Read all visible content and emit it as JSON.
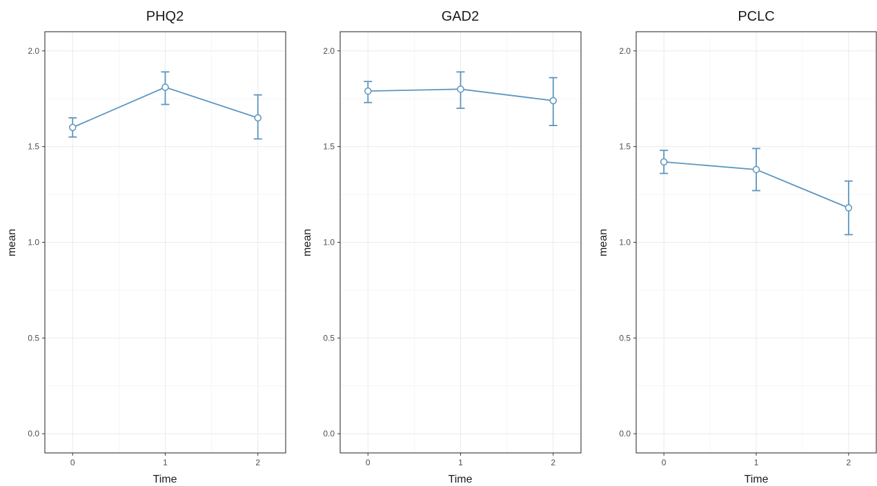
{
  "chart_data": [
    {
      "type": "line",
      "title": "PHQ2",
      "xlabel": "Time",
      "ylabel": "mean",
      "x": [
        0,
        1,
        2
      ],
      "xticks": [
        "0",
        "1",
        "2"
      ],
      "ylim": [
        -0.1,
        2.1
      ],
      "yticks": [
        "0.0",
        "0.5",
        "1.0",
        "1.5",
        "2.0"
      ],
      "grid": true,
      "series": [
        {
          "values": [
            1.6,
            1.81,
            1.65
          ],
          "error_low": [
            1.55,
            1.72,
            1.54
          ],
          "error_high": [
            1.65,
            1.89,
            1.77
          ],
          "color": "#5b95c0"
        }
      ]
    },
    {
      "type": "line",
      "title": "GAD2",
      "xlabel": "Time",
      "ylabel": "mean",
      "x": [
        0,
        1,
        2
      ],
      "xticks": [
        "0",
        "1",
        "2"
      ],
      "ylim": [
        -0.1,
        2.1
      ],
      "yticks": [
        "0.0",
        "0.5",
        "1.0",
        "1.5",
        "2.0"
      ],
      "grid": true,
      "series": [
        {
          "values": [
            1.79,
            1.8,
            1.74
          ],
          "error_low": [
            1.73,
            1.7,
            1.61
          ],
          "error_high": [
            1.84,
            1.89,
            1.86
          ],
          "color": "#5b95c0"
        }
      ]
    },
    {
      "type": "line",
      "title": "PCLC",
      "xlabel": "Time",
      "ylabel": "mean",
      "x": [
        0,
        1,
        2
      ],
      "xticks": [
        "0",
        "1",
        "2"
      ],
      "ylim": [
        -0.1,
        2.1
      ],
      "yticks": [
        "0.0",
        "0.5",
        "1.0",
        "1.5",
        "2.0"
      ],
      "grid": true,
      "series": [
        {
          "values": [
            1.42,
            1.38,
            1.18
          ],
          "error_low": [
            1.36,
            1.27,
            1.04
          ],
          "error_high": [
            1.48,
            1.49,
            1.32
          ],
          "color": "#5b95c0"
        }
      ]
    }
  ]
}
